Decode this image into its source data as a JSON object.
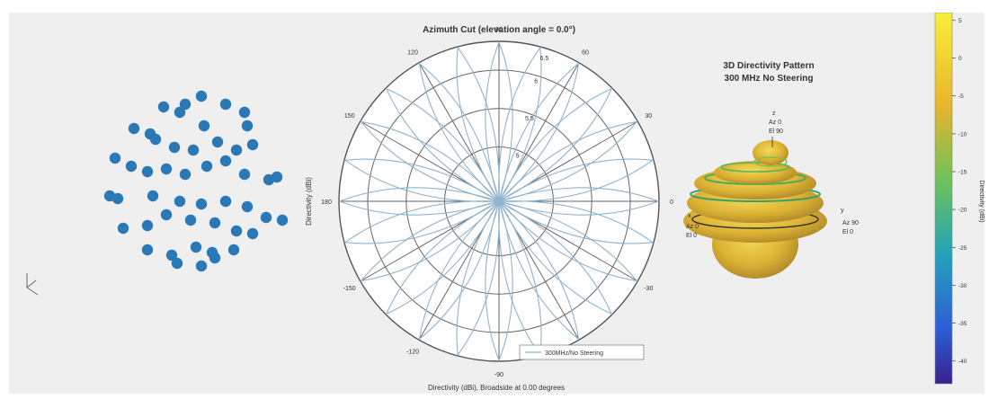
{
  "chart_data": [
    {
      "type": "scatter",
      "title": "",
      "description_text": "",
      "series": [
        {
          "x": [
            -0.6,
            -0.2,
            0.1,
            -0.3,
            0.15,
            0.55,
            0.9,
            0.95,
            -1.15,
            -0.85,
            -0.75,
            -0.4,
            -0.05,
            0.4,
            0.75,
            1.05,
            -1.5,
            -1.2,
            -0.9,
            -0.55,
            -0.2,
            0.2,
            0.55,
            0.9,
            1.35,
            1.5,
            -1.6,
            -1.45,
            -0.8,
            -0.3,
            0.1,
            0.55,
            0.95,
            1.3,
            1.6,
            -1.35,
            -0.9,
            -0.55,
            -0.1,
            0.35,
            0.75,
            1.05,
            -0.9,
            -0.45,
            0.0,
            0.35,
            0.7,
            -0.35,
            0.1,
            0.3
          ],
          "y": [
            1.55,
            1.6,
            1.75,
            1.45,
            1.2,
            1.6,
            1.45,
            1.2,
            1.15,
            1.05,
            0.95,
            0.8,
            0.75,
            0.9,
            0.75,
            0.85,
            0.6,
            0.45,
            0.35,
            0.4,
            0.3,
            0.45,
            0.55,
            0.3,
            0.2,
            0.25,
            -0.1,
            -0.15,
            -0.1,
            -0.2,
            -0.25,
            -0.2,
            -0.3,
            -0.5,
            -0.55,
            -0.7,
            -0.65,
            -0.45,
            -0.55,
            -0.6,
            -0.75,
            -0.8,
            -1.1,
            -1.2,
            -1.05,
            -1.25,
            -1.1,
            -1.35,
            -1.4,
            -1.15
          ]
        }
      ]
    },
    {
      "type": "polar",
      "title": "Azimuth Cut (elevation angle = 0.0°)",
      "rlabel": "Directivity (dBi)",
      "angle_ticks": [
        "0",
        "30",
        "60",
        "90",
        "120",
        "150",
        "180",
        "-150",
        "-120",
        "-90",
        "-60",
        "-30"
      ],
      "r_ticks": [
        "5",
        "5.5",
        "6",
        "6.5"
      ],
      "legend": "300MHz/No Steering",
      "xlabel": "Directivity (dBi), Broadside at 0.00 degrees"
    },
    {
      "type": "surface3d",
      "title": "3D Directivity Pattern",
      "subtitle": "300 MHz No Steering",
      "axis_labels": [
        {
          "axis": "z",
          "line1": "Az 0",
          "line2": "El 90"
        },
        {
          "axis": "x",
          "line1": "Az 0",
          "line2": "El 0"
        },
        {
          "axis": "y",
          "line1": "Az 90",
          "line2": "El 0"
        }
      ],
      "colorbar": {
        "label": "Directivity (dBi)",
        "ticks": [
          "5",
          "0",
          "-5",
          "-10",
          "-15",
          "-20",
          "-25",
          "-30",
          "-35",
          "-40"
        ],
        "range": [
          -43,
          6
        ]
      }
    }
  ],
  "colors": {
    "marker": "#2a78b5",
    "polar_line": "#8fb3cf",
    "grid": "#666666"
  }
}
